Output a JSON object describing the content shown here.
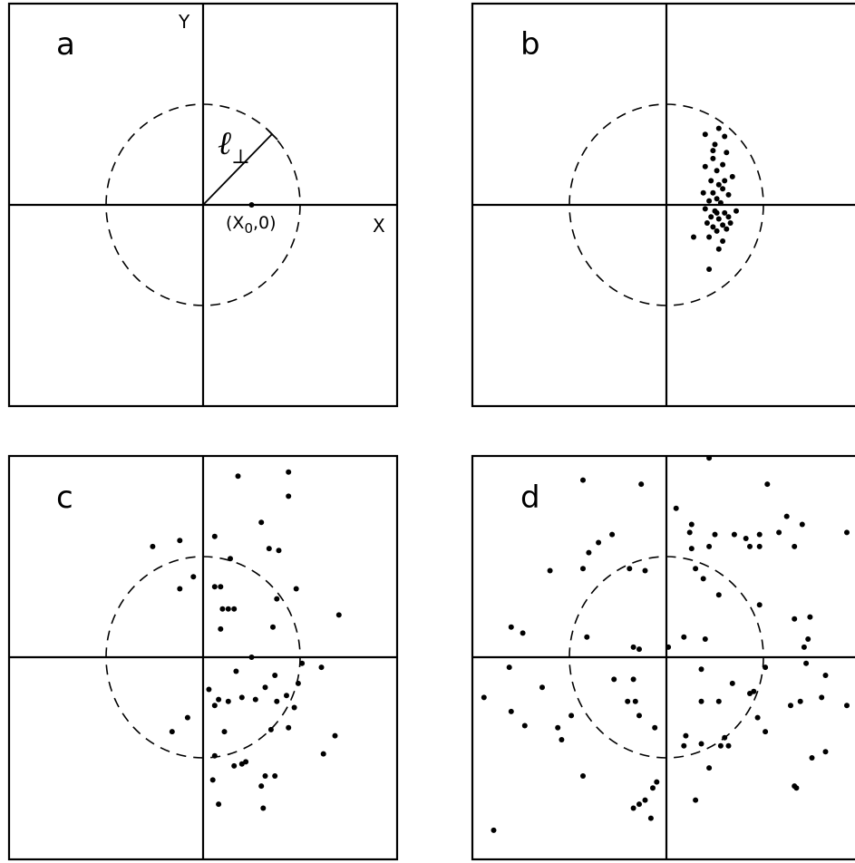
{
  "chart_data": [
    {
      "type": "scatter",
      "panel_label": "a",
      "xlabel": "X",
      "ylabel": "Y",
      "xlim": [
        -5,
        5
      ],
      "ylim": [
        -5,
        5
      ],
      "circle_radius": 2.5,
      "radius_label_symbol": "ℓ",
      "radius_label_subscript": "⊥",
      "point_label": "(X0,0)",
      "point_label_prefix": "(X",
      "point_label_subscript": "0",
      "point_label_suffix": ",0)",
      "points": [
        [
          1.25,
          0.0
        ]
      ]
    },
    {
      "type": "scatter",
      "panel_label": "b",
      "xlim": [
        -5,
        5
      ],
      "ylim": [
        -5,
        5
      ],
      "circle_radius": 2.5,
      "points": [
        [
          1.35,
          1.9
        ],
        [
          1.5,
          1.7
        ],
        [
          1.25,
          1.5
        ],
        [
          1.55,
          1.3
        ],
        [
          1.0,
          1.75
        ],
        [
          1.2,
          1.15
        ],
        [
          1.45,
          1.0
        ],
        [
          1.0,
          0.95
        ],
        [
          1.3,
          0.85
        ],
        [
          1.7,
          0.7
        ],
        [
          1.15,
          0.6
        ],
        [
          1.35,
          0.5
        ],
        [
          1.45,
          0.4
        ],
        [
          1.2,
          0.3
        ],
        [
          1.6,
          0.25
        ],
        [
          1.3,
          0.15
        ],
        [
          1.1,
          0.1
        ],
        [
          1.4,
          0.05
        ],
        [
          1.0,
          -0.1
        ],
        [
          1.25,
          -0.15
        ],
        [
          1.5,
          -0.2
        ],
        [
          1.15,
          -0.3
        ],
        [
          1.35,
          -0.35
        ],
        [
          1.8,
          -0.15
        ],
        [
          1.65,
          -0.45
        ],
        [
          1.05,
          -0.45
        ],
        [
          1.2,
          -0.55
        ],
        [
          1.45,
          -0.5
        ],
        [
          1.3,
          -0.65
        ],
        [
          1.55,
          -0.6
        ],
        [
          0.7,
          -0.8
        ],
        [
          1.1,
          -0.8
        ],
        [
          1.45,
          -0.9
        ],
        [
          1.35,
          -1.1
        ],
        [
          1.1,
          -1.6
        ],
        [
          1.2,
          1.35
        ],
        [
          0.95,
          0.3
        ],
        [
          1.6,
          -0.3
        ],
        [
          1.3,
          -0.2
        ],
        [
          1.5,
          0.6
        ]
      ]
    },
    {
      "type": "scatter",
      "panel_label": "c",
      "xlim": [
        -5,
        5
      ],
      "ylim": [
        -5,
        5
      ],
      "circle_radius": 2.5,
      "points": [
        [
          0.9,
          4.5
        ],
        [
          2.2,
          4.6
        ],
        [
          2.2,
          4.0
        ],
        [
          1.5,
          3.35
        ],
        [
          0.3,
          3.0
        ],
        [
          1.7,
          2.7
        ],
        [
          1.95,
          2.65
        ],
        [
          -1.3,
          2.75
        ],
        [
          -0.6,
          2.9
        ],
        [
          -0.25,
          2.0
        ],
        [
          -0.6,
          1.7
        ],
        [
          0.7,
          2.45
        ],
        [
          0.3,
          1.75
        ],
        [
          0.45,
          1.75
        ],
        [
          2.4,
          1.7
        ],
        [
          1.9,
          1.45
        ],
        [
          0.5,
          1.2
        ],
        [
          0.65,
          1.2
        ],
        [
          0.8,
          1.2
        ],
        [
          0.45,
          0.7
        ],
        [
          1.8,
          0.75
        ],
        [
          3.5,
          1.05
        ],
        [
          2.55,
          -0.15
        ],
        [
          3.05,
          -0.25
        ],
        [
          1.25,
          0.0
        ],
        [
          0.85,
          -0.35
        ],
        [
          1.85,
          -0.45
        ],
        [
          1.6,
          -0.75
        ],
        [
          2.45,
          -0.65
        ],
        [
          0.15,
          -0.8
        ],
        [
          0.4,
          -1.05
        ],
        [
          0.65,
          -1.1
        ],
        [
          1.0,
          -1.0
        ],
        [
          1.35,
          -1.05
        ],
        [
          2.15,
          -0.95
        ],
        [
          1.9,
          -1.1
        ],
        [
          0.3,
          -1.2
        ],
        [
          2.35,
          -1.25
        ],
        [
          -0.4,
          -1.5
        ],
        [
          -0.8,
          -1.85
        ],
        [
          0.55,
          -1.85
        ],
        [
          1.75,
          -1.8
        ],
        [
          2.2,
          -1.75
        ],
        [
          3.4,
          -1.95
        ],
        [
          3.1,
          -2.4
        ],
        [
          0.3,
          -2.45
        ],
        [
          0.8,
          -2.7
        ],
        [
          1.0,
          -2.65
        ],
        [
          1.1,
          -2.6
        ],
        [
          1.6,
          -2.95
        ],
        [
          1.85,
          -2.95
        ],
        [
          0.25,
          -3.05
        ],
        [
          1.5,
          -3.2
        ],
        [
          0.4,
          -3.65
        ],
        [
          1.55,
          -3.75
        ]
      ]
    },
    {
      "type": "scatter",
      "panel_label": "d",
      "xlim": [
        -5,
        5
      ],
      "ylim": [
        -5,
        5
      ],
      "circle_radius": 2.5,
      "points": [
        [
          1.1,
          4.95
        ],
        [
          -2.15,
          4.4
        ],
        [
          -0.65,
          4.3
        ],
        [
          2.6,
          4.3
        ],
        [
          0.25,
          3.7
        ],
        [
          0.65,
          3.3
        ],
        [
          0.6,
          3.1
        ],
        [
          1.25,
          3.05
        ],
        [
          1.75,
          3.05
        ],
        [
          2.05,
          2.95
        ],
        [
          2.4,
          3.05
        ],
        [
          2.9,
          3.1
        ],
        [
          3.5,
          3.3
        ],
        [
          4.65,
          3.1
        ],
        [
          5.0,
          3.2
        ],
        [
          3.1,
          3.5
        ],
        [
          3.3,
          2.75
        ],
        [
          2.15,
          2.75
        ],
        [
          2.4,
          2.75
        ],
        [
          1.1,
          2.75
        ],
        [
          0.65,
          2.7
        ],
        [
          -1.4,
          3.05
        ],
        [
          -1.75,
          2.85
        ],
        [
          -2.0,
          2.6
        ],
        [
          -2.15,
          2.2
        ],
        [
          -0.95,
          2.2
        ],
        [
          -0.55,
          2.15
        ],
        [
          -3.0,
          2.15
        ],
        [
          0.75,
          2.2
        ],
        [
          0.95,
          1.95
        ],
        [
          1.35,
          1.55
        ],
        [
          2.4,
          1.3
        ],
        [
          3.7,
          1.0
        ],
        [
          3.3,
          0.95
        ],
        [
          -4.0,
          0.75
        ],
        [
          -3.7,
          0.6
        ],
        [
          -2.05,
          0.5
        ],
        [
          0.45,
          0.5
        ],
        [
          1.0,
          0.45
        ],
        [
          -0.85,
          0.25
        ],
        [
          -0.7,
          0.2
        ],
        [
          0.05,
          0.25
        ],
        [
          3.55,
          0.25
        ],
        [
          3.65,
          0.45
        ],
        [
          -4.05,
          -0.25
        ],
        [
          0.9,
          -0.3
        ],
        [
          -3.2,
          -0.75
        ],
        [
          -1.35,
          -0.55
        ],
        [
          -0.85,
          -0.55
        ],
        [
          2.55,
          -0.25
        ],
        [
          3.6,
          -0.15
        ],
        [
          4.1,
          -0.45
        ],
        [
          4.95,
          -0.3
        ],
        [
          -1.0,
          -1.1
        ],
        [
          -0.8,
          -1.1
        ],
        [
          0.9,
          -1.1
        ],
        [
          1.35,
          -1.1
        ],
        [
          1.7,
          -0.65
        ],
        [
          2.15,
          -0.9
        ],
        [
          2.25,
          -0.85
        ],
        [
          3.2,
          -1.2
        ],
        [
          3.45,
          -1.1
        ],
        [
          4.0,
          -1.0
        ],
        [
          4.65,
          -1.2
        ],
        [
          4.95,
          -0.9
        ],
        [
          -4.7,
          -1.0
        ],
        [
          -4.0,
          -1.35
        ],
        [
          -3.65,
          -1.7
        ],
        [
          -2.8,
          -1.75
        ],
        [
          -2.45,
          -1.45
        ],
        [
          -0.7,
          -1.45
        ],
        [
          -0.3,
          -1.75
        ],
        [
          0.5,
          -1.95
        ],
        [
          0.9,
          -2.15
        ],
        [
          1.5,
          -2.0
        ],
        [
          1.6,
          -2.2
        ],
        [
          1.4,
          -2.2
        ],
        [
          2.35,
          -1.5
        ],
        [
          2.55,
          -1.85
        ],
        [
          -2.7,
          -2.05
        ],
        [
          0.45,
          -2.2
        ],
        [
          -2.15,
          -2.95
        ],
        [
          1.1,
          -2.75
        ],
        [
          3.75,
          -2.5
        ],
        [
          4.1,
          -2.35
        ],
        [
          3.3,
          -3.2
        ],
        [
          3.35,
          -3.25
        ],
        [
          -0.25,
          -3.1
        ],
        [
          -0.35,
          -3.25
        ],
        [
          -0.55,
          -3.55
        ],
        [
          -0.85,
          -3.75
        ],
        [
          -0.7,
          -3.65
        ],
        [
          0.75,
          -3.55
        ],
        [
          -0.4,
          -4.0
        ],
        [
          -4.45,
          -4.3
        ]
      ]
    }
  ]
}
